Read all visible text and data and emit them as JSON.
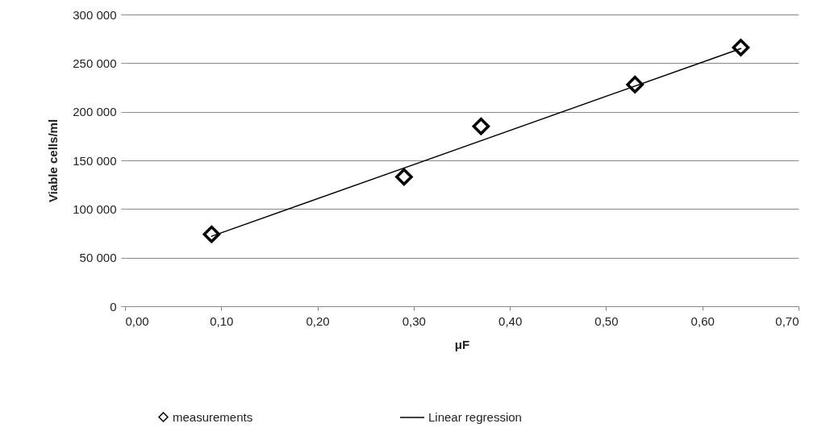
{
  "chart_data": {
    "type": "scatter",
    "xlabel": "μF",
    "ylabel": "Viable cells/ml",
    "x": [
      0.09,
      0.29,
      0.37,
      0.53,
      0.64
    ],
    "series": [
      {
        "name": "measurements",
        "color": "#000000",
        "marker": "diamond",
        "values": [
          74000,
          133000,
          185000,
          228000,
          266000
        ]
      },
      {
        "name": "Linear regression",
        "type": "line",
        "line_style": "solid",
        "color": "#000000",
        "x": [
          0.09,
          0.64
        ],
        "values": [
          72000,
          265000
        ]
      }
    ],
    "xlim": [
      0,
      0.7
    ],
    "xticks": [
      {
        "value": 0,
        "label": "0,00"
      },
      {
        "value": 0.1,
        "label": "0,10"
      },
      {
        "value": 0.2,
        "label": "0,20"
      },
      {
        "value": 0.3,
        "label": "0,30"
      },
      {
        "value": 0.4,
        "label": "0,40"
      },
      {
        "value": 0.5,
        "label": "0,50"
      },
      {
        "value": 0.6,
        "label": "0,60"
      },
      {
        "value": 0.7,
        "label": "0,70"
      }
    ],
    "ylim": [
      0,
      300000
    ],
    "yticks": [
      0,
      {
        "value": 50000,
        "label": "50 000"
      },
      {
        "value": 100000,
        "label": "100 000"
      },
      {
        "value": 150000,
        "label": "150 000"
      },
      {
        "value": 200000,
        "label": "200 000"
      },
      {
        "value": 250000,
        "label": "250 000"
      },
      {
        "value": 300000,
        "label": "300 000"
      }
    ],
    "grid": "y",
    "legend": "bottom"
  }
}
